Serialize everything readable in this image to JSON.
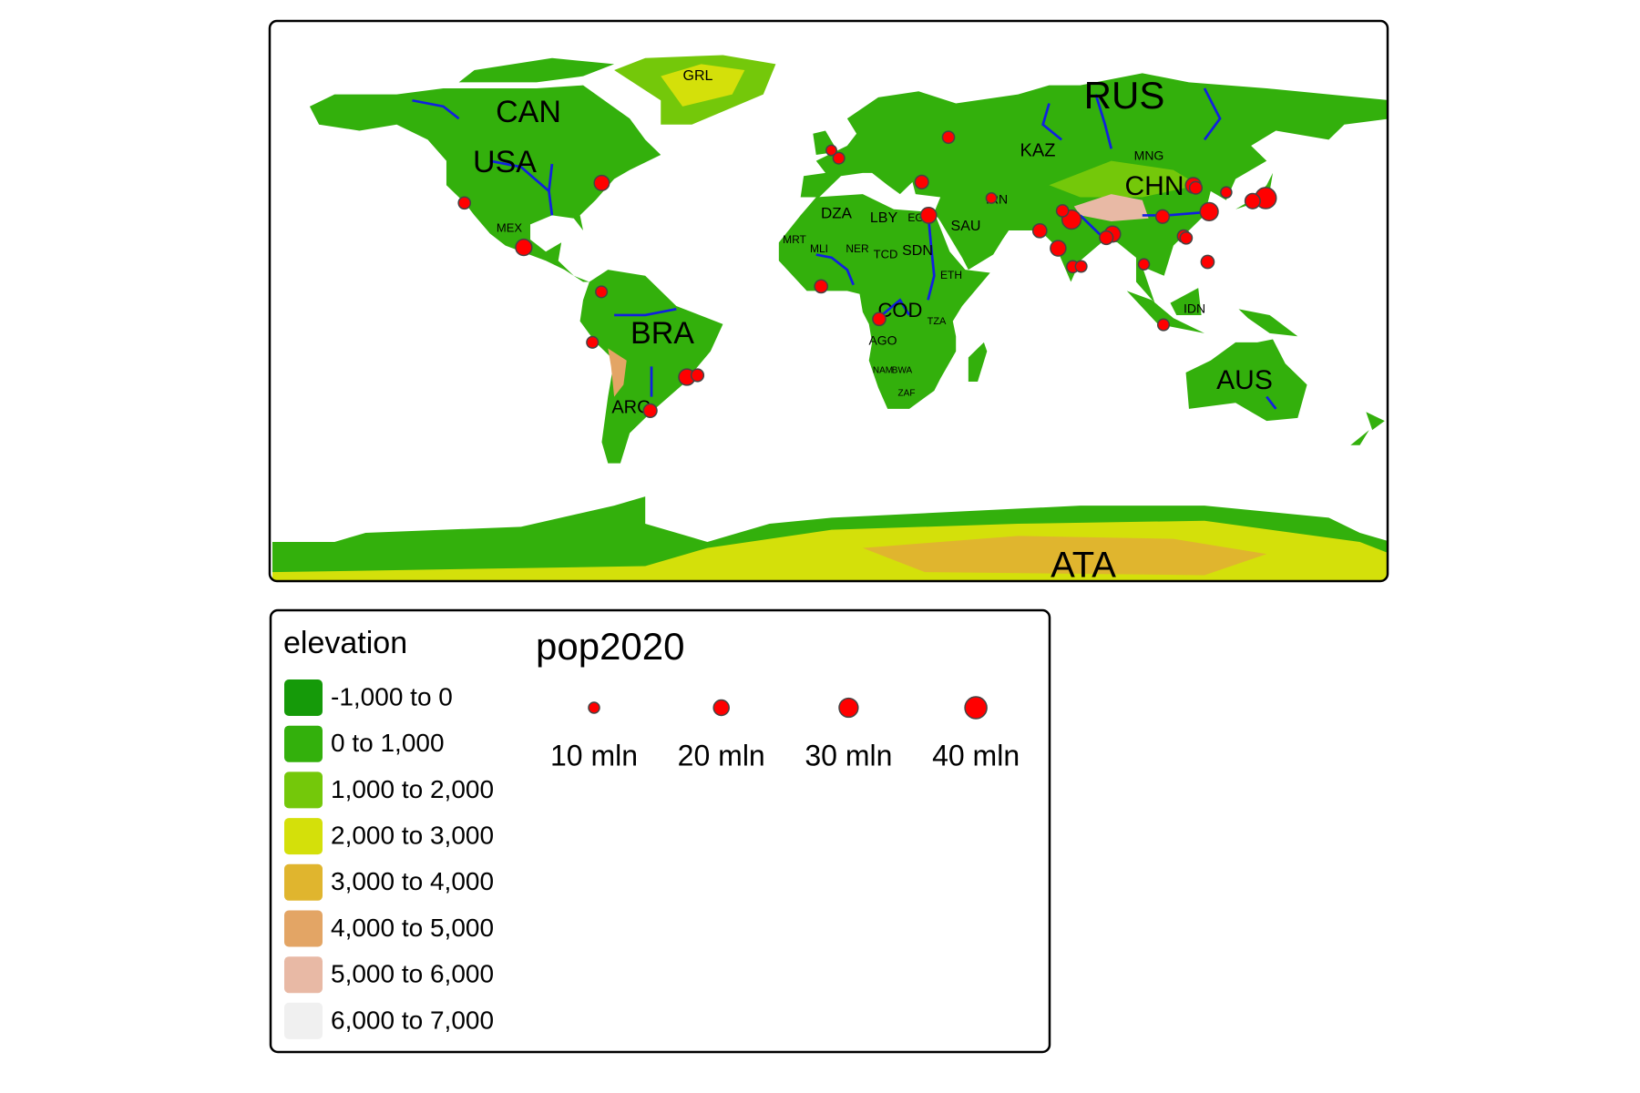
{
  "map": {
    "labels": [
      "GRL",
      "CAN",
      "USA",
      "MEX",
      "RUS",
      "KAZ",
      "MNG",
      "CHN",
      "IRN",
      "SAU",
      "DZA",
      "LBY",
      "EGY",
      "SDN",
      "TCD",
      "NER",
      "MLI",
      "MRT",
      "ETH",
      "COD",
      "AGO",
      "TZA",
      "NAM",
      "BWA",
      "ZAF",
      "BRA",
      "ARG",
      "AUS",
      "IDN",
      "ATA"
    ],
    "cities": {
      "lon": [
        139.7,
        77.2,
        121.5,
        -46.6,
        -99.1,
        31.2,
        72.9,
        116.4,
        90.4,
        135.5,
        -74.0,
        67.0,
        -58.4,
        106.5,
        29.0,
        88.4,
        121.0,
        -3.4,
        -43.2,
        117.2,
        15.3,
        113.3,
        -118.2,
        37.6,
        114.1,
        74.3,
        77.6,
        2.3,
        -74.1,
        106.8,
        80.3,
        -77.0,
        100.5,
        127.0,
        -0.1,
        51.4
      ],
      "lat": [
        35.7,
        28.6,
        31.2,
        -23.5,
        19.4,
        30.0,
        19.1,
        39.9,
        23.8,
        34.7,
        40.7,
        24.9,
        -34.6,
        29.6,
        41.0,
        22.6,
        14.6,
        6.5,
        -22.9,
        39.1,
        -4.3,
        23.1,
        34.1,
        55.8,
        22.5,
        31.5,
        13.0,
        48.9,
        4.7,
        -6.2,
        13.1,
        -12.0,
        13.8,
        37.6,
        51.5,
        35.7
      ],
      "pop2020": [
        37,
        30,
        27,
        22,
        22,
        21,
        20,
        20,
        21,
        19,
        19,
        16,
        15,
        15,
        15,
        15,
        14,
        14,
        13,
        13,
        14,
        13,
        12,
        12,
        12,
        12,
        12,
        11,
        11,
        11,
        11,
        11,
        10,
        10,
        9,
        9
      ]
    }
  },
  "legend": {
    "elevation": {
      "title": "elevation",
      "labels": [
        "-1,000 to 0",
        "0 to 1,000",
        "1,000 to 2,000",
        "2,000 to 3,000",
        "3,000 to 4,000",
        "4,000 to 5,000",
        "5,000 to 6,000",
        "6,000 to 7,000"
      ],
      "colors": [
        "#159a09",
        "#33b00c",
        "#74c80a",
        "#d4e00a",
        "#e0b52e",
        "#e3a565",
        "#e8b9a5",
        "#f0f0f0"
      ]
    },
    "pop2020": {
      "title": "pop2020",
      "sizes": [
        {
          "value": 10,
          "label": "10 mln"
        },
        {
          "value": 20,
          "label": "20 mln"
        },
        {
          "value": 30,
          "label": "30 mln"
        },
        {
          "value": 40,
          "label": "40 mln"
        }
      ],
      "color": "#ff0000"
    }
  }
}
